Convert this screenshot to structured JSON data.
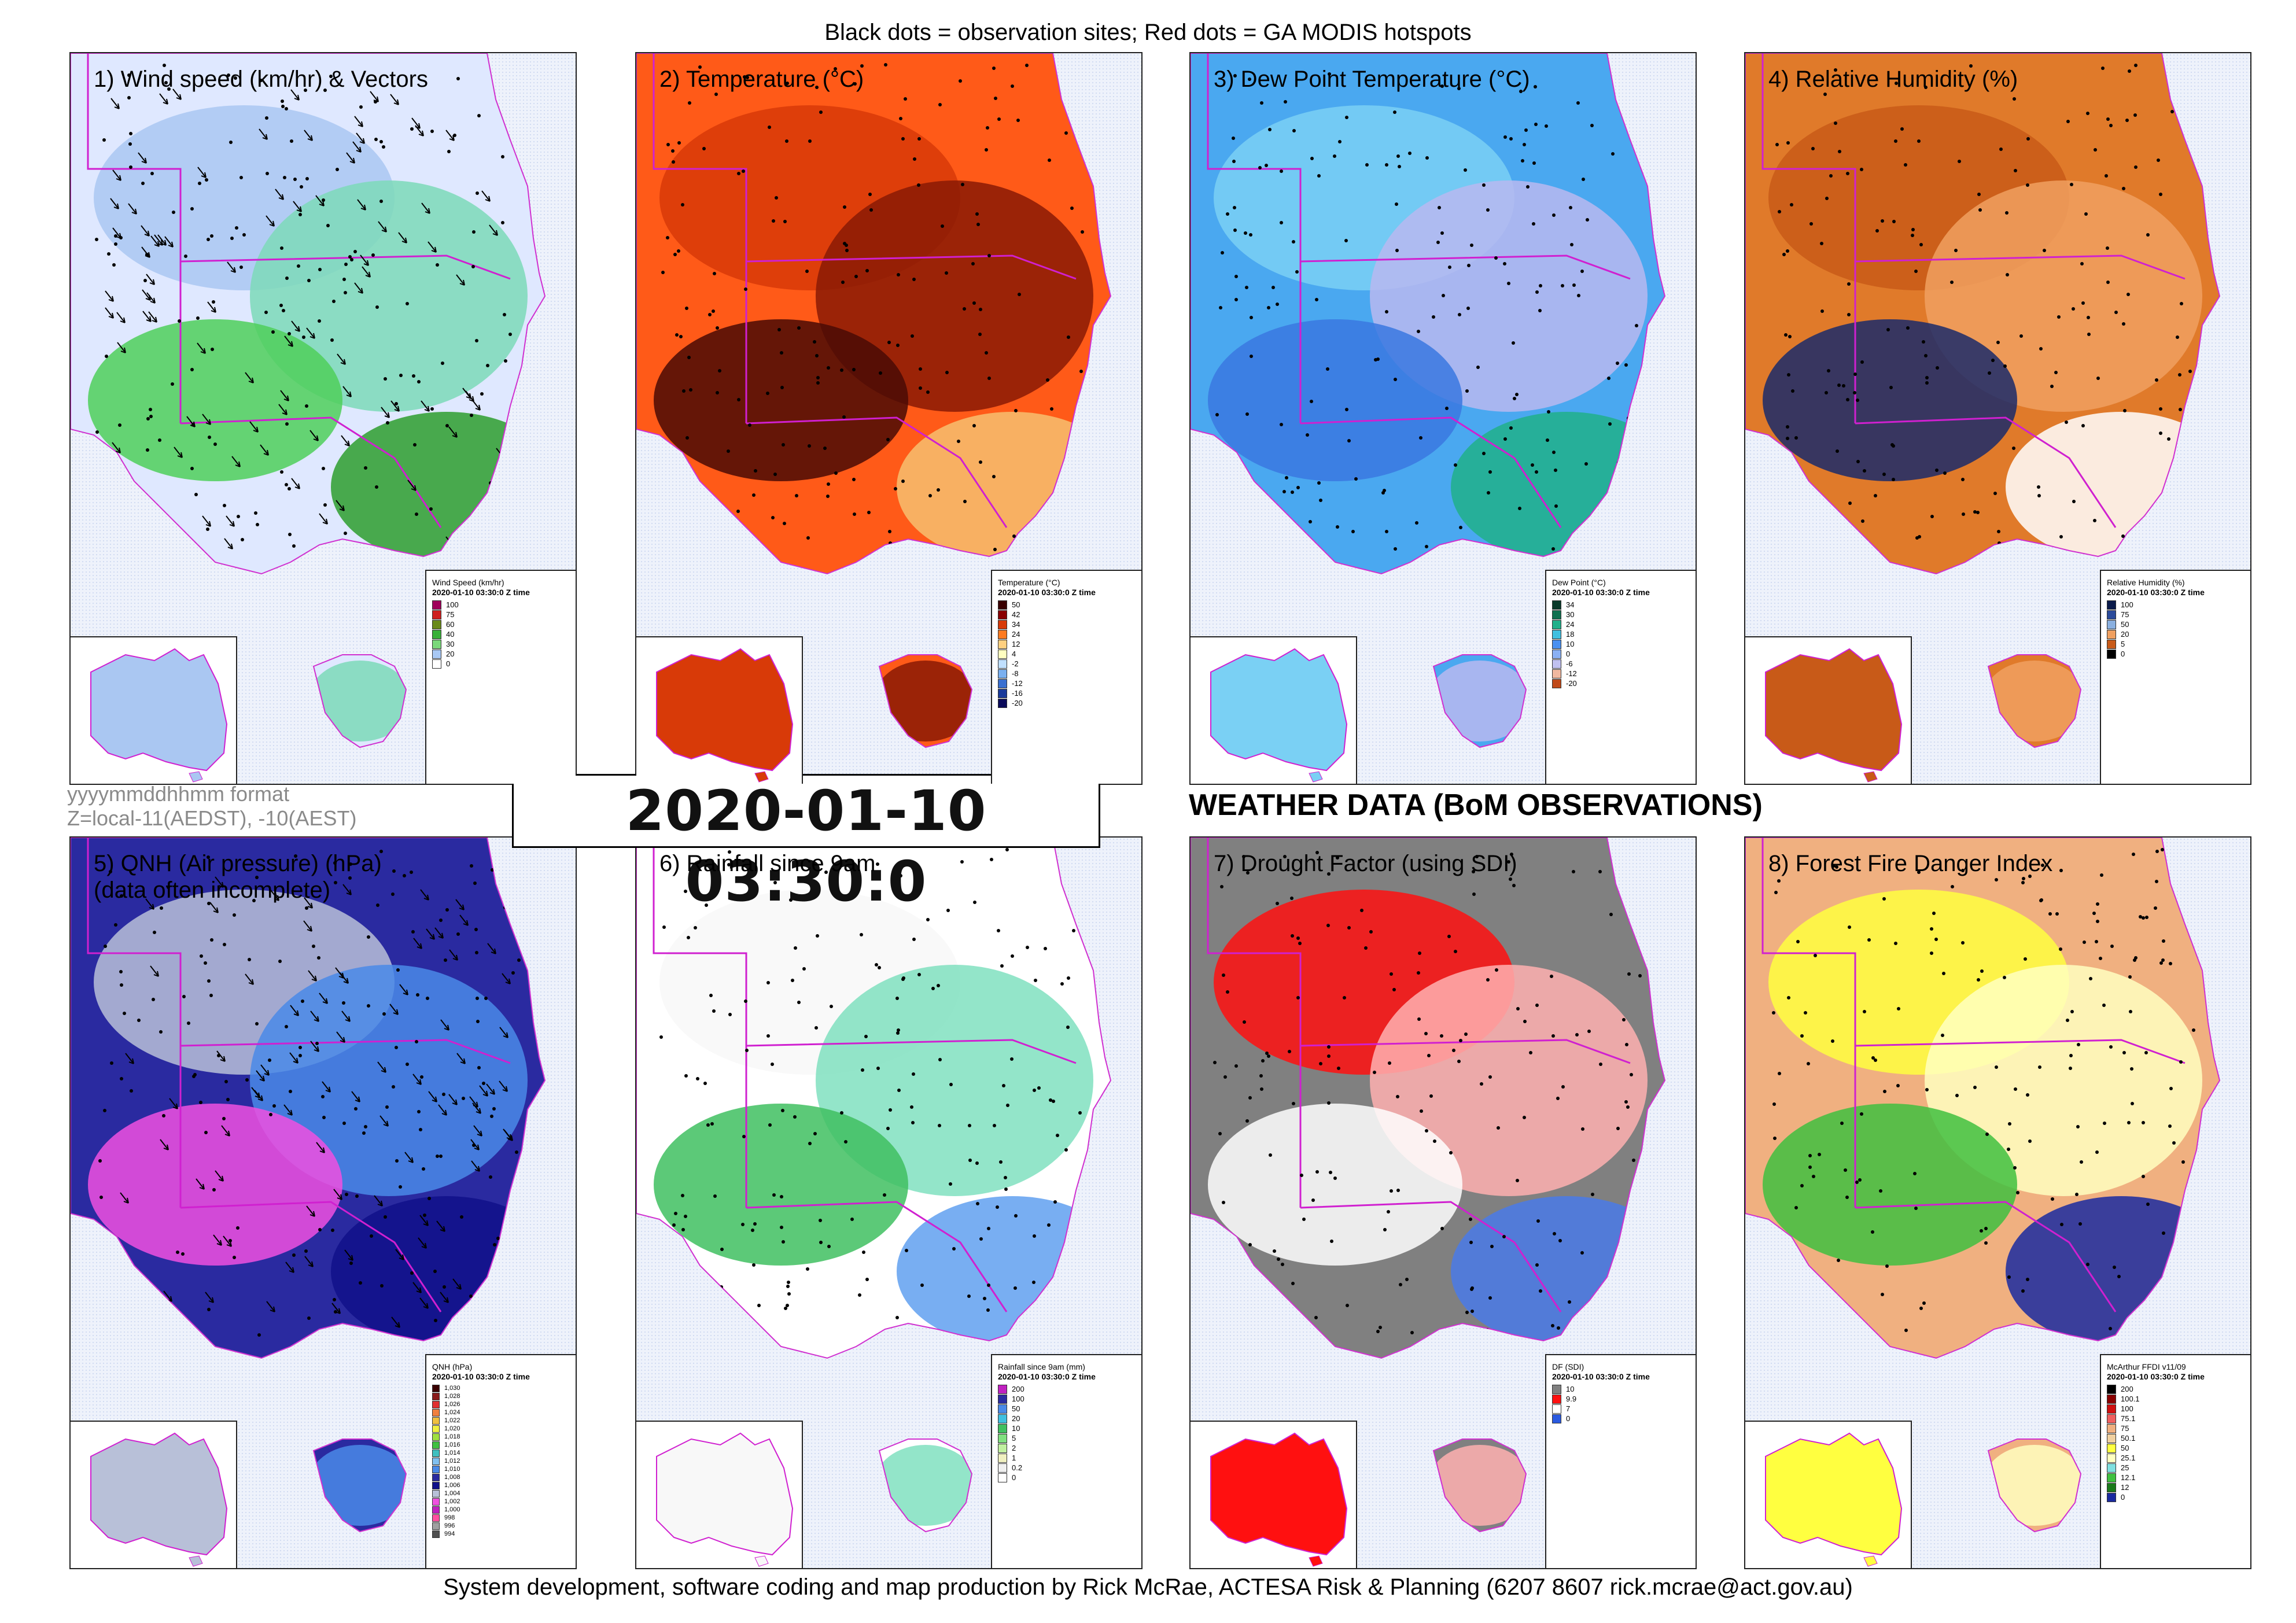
{
  "header": {
    "note": "Black dots = observation sites; Red dots = GA MODIS hotspots"
  },
  "meta": {
    "format": "yyyymmddhhmm format",
    "zone": "Z=local-11(AEDST), -10(AEST)"
  },
  "timestamp": "2020-01-10 03:30:0",
  "heading": "WEATHER DATA (BoM OBSERVATIONS)",
  "footer": "System development, software coding and map production by Rick McRae, ACTESA Risk & Planning (6207 8607 rick.mcrae@act.gov.au)",
  "panels": [
    {
      "title": "1) Wind speed (km/hr) & Vectors",
      "colors": [
        "#dfe8ff",
        "#aac7f2",
        "#7dd9b8",
        "#4fcf5a",
        "#2e9e2e"
      ],
      "legend": {
        "title": "Wind Speed (km/hr)",
        "time": "2020-01-10 03:30:0 Z time",
        "rows": [
          {
            "label": "100",
            "color": "#a0005a"
          },
          {
            "label": "75",
            "color": "#cf2020"
          },
          {
            "label": "60",
            "color": "#6a8a1a"
          },
          {
            "label": "40",
            "color": "#39b039"
          },
          {
            "label": "30",
            "color": "#7ad87a"
          },
          {
            "label": "20",
            "color": "#a8c8f4"
          },
          {
            "label": "0",
            "color": "#ffffff"
          }
        ]
      }
    },
    {
      "title": "2) Temperature (°C)",
      "colors": [
        "#ff5a18",
        "#d83a08",
        "#8a1a05",
        "#4a0a05",
        "#f7c070"
      ],
      "legend": {
        "title": "Temperature (°C)",
        "time": "2020-01-10 03:30:0 Z time",
        "rows": [
          {
            "label": "50",
            "color": "#3a0000"
          },
          {
            "label": "42",
            "color": "#8a0000"
          },
          {
            "label": "34",
            "color": "#d83a08"
          },
          {
            "label": "24",
            "color": "#ff7a20"
          },
          {
            "label": "12",
            "color": "#ffd080"
          },
          {
            "label": "4",
            "color": "#ffffc0"
          },
          {
            "label": "-2",
            "color": "#c0e0ff"
          },
          {
            "label": "-8",
            "color": "#7ab0f0"
          },
          {
            "label": "-12",
            "color": "#3a70d0"
          },
          {
            "label": "-16",
            "color": "#1a3a9a"
          },
          {
            "label": "-20",
            "color": "#0a0a5a"
          }
        ]
      }
    },
    {
      "title": "3) Dew Point Temperature (°C)",
      "colors": [
        "#4aa8f0",
        "#7ad0f4",
        "#b8b8f0",
        "#3a78e0",
        "#20b08a"
      ],
      "legend": {
        "title": "Dew Point (°C)",
        "time": "2020-01-10 03:30:0 Z time",
        "rows": [
          {
            "label": "34",
            "color": "#0a3a2a"
          },
          {
            "label": "30",
            "color": "#107050"
          },
          {
            "label": "24",
            "color": "#20b08a"
          },
          {
            "label": "18",
            "color": "#40c0e0"
          },
          {
            "label": "10",
            "color": "#4a90f0"
          },
          {
            "label": "0",
            "color": "#8ab0f4"
          },
          {
            "label": "-6",
            "color": "#c0c0f0"
          },
          {
            "label": "-12",
            "color": "#f0b8a0"
          },
          {
            "label": "-20",
            "color": "#c04a1a"
          }
        ]
      }
    },
    {
      "title": "4) Relative Humidity (%)",
      "colors": [
        "#e07a2a",
        "#c85a18",
        "#f0a060",
        "#1a2a6a",
        "#ffffff"
      ],
      "legend": {
        "title": "Relative Humidity (%)",
        "time": "2020-01-10 03:30:0 Z time",
        "rows": [
          {
            "label": "100",
            "color": "#0a1a4a"
          },
          {
            "label": "75",
            "color": "#2a4a9a"
          },
          {
            "label": "50",
            "color": "#8ab0e0"
          },
          {
            "label": "20",
            "color": "#f0a060"
          },
          {
            "label": "5",
            "color": "#c85a18"
          },
          {
            "label": "0",
            "color": "#000000"
          }
        ]
      }
    },
    {
      "title": "5) QNH (Air pressure) (hPa)\n(data often incomplete)",
      "colors": [
        "#2a2aa0",
        "#b8c0d8",
        "#4a8ae8",
        "#f050e0",
        "#10108a"
      ],
      "legend": {
        "title": "QNH (hPa)",
        "time": "2020-01-10 03:30:0 Z time",
        "rows": [
          {
            "label": "1,030",
            "color": "#3a0000"
          },
          {
            "label": "1,028",
            "color": "#8a1a1a"
          },
          {
            "label": "1,026",
            "color": "#e03030"
          },
          {
            "label": "1,024",
            "color": "#f08040"
          },
          {
            "label": "1,022",
            "color": "#f0c040"
          },
          {
            "label": "1,020",
            "color": "#f0f040"
          },
          {
            "label": "1,018",
            "color": "#a0e040"
          },
          {
            "label": "1,016",
            "color": "#40c040"
          },
          {
            "label": "1,014",
            "color": "#40c0c0"
          },
          {
            "label": "1,012",
            "color": "#80c0f0"
          },
          {
            "label": "1,010",
            "color": "#4a8ae8"
          },
          {
            "label": "1,008",
            "color": "#2a2aa0"
          },
          {
            "label": "1,006",
            "color": "#10108a"
          },
          {
            "label": "1,004",
            "color": "#b8c0d8"
          },
          {
            "label": "1,002",
            "color": "#f050e0"
          },
          {
            "label": "1,000",
            "color": "#c020c0"
          },
          {
            "label": "998",
            "color": "#ff50a0"
          },
          {
            "label": "996",
            "color": "#a0a0a0"
          },
          {
            "label": "994",
            "color": "#505050"
          }
        ]
      }
    },
    {
      "title": "6) Rainfall since 9am",
      "colors": [
        "#ffffff",
        "#f8f8f8",
        "#80e0c0",
        "#40c060",
        "#60a0f0"
      ],
      "legend": {
        "title": "Rainfall since 9am (mm)",
        "time": "2020-01-10 03:30:0 Z time",
        "rows": [
          {
            "label": "200",
            "color": "#c020c0"
          },
          {
            "label": "100",
            "color": "#2a2aa0"
          },
          {
            "label": "50",
            "color": "#4a8ae8"
          },
          {
            "label": "20",
            "color": "#40c0e0"
          },
          {
            "label": "10",
            "color": "#40c060"
          },
          {
            "label": "5",
            "color": "#80e080"
          },
          {
            "label": "2",
            "color": "#c0f0a0"
          },
          {
            "label": "1",
            "color": "#f0f0c0"
          },
          {
            "label": "0.2",
            "color": "#f0f0f0"
          },
          {
            "label": "0",
            "color": "#ffffff"
          }
        ]
      }
    },
    {
      "title": "7) Drought Factor (using SDI)",
      "colors": [
        "#808080",
        "#ff1010",
        "#ffb0b0",
        "#ffffff",
        "#4a7ae8"
      ],
      "legend": {
        "title": "DF (SDI)",
        "time": "2020-01-10 03:30:0 Z time",
        "rows": [
          {
            "label": "10",
            "color": "#808080"
          },
          {
            "label": "9.9",
            "color": "#ff1010"
          },
          {
            "label": "7",
            "color": "#ffffff"
          },
          {
            "label": "0",
            "color": "#2a5ae0"
          }
        ]
      }
    },
    {
      "title": "8) Forest Fire Danger Index",
      "colors": [
        "#f0b080",
        "#ffff40",
        "#ffffc0",
        "#40c040",
        "#1a2aa0"
      ],
      "legend": {
        "title": "McArthur FFDI v11/09",
        "time": "2020-01-10 03:30:0 Z time",
        "rows": [
          {
            "label": "200",
            "color": "#000000"
          },
          {
            "label": "100.1",
            "color": "#8a0000"
          },
          {
            "label": "100",
            "color": "#d01010"
          },
          {
            "label": "75.1",
            "color": "#f06060"
          },
          {
            "label": "75",
            "color": "#f0b080"
          },
          {
            "label": "50.1",
            "color": "#f0d0a0"
          },
          {
            "label": "50",
            "color": "#ffff40"
          },
          {
            "label": "25.1",
            "color": "#ffffc0"
          },
          {
            "label": "25",
            "color": "#80e0e0"
          },
          {
            "label": "12.1",
            "color": "#40c040"
          },
          {
            "label": "12",
            "color": "#1a7a1a"
          },
          {
            "label": "0",
            "color": "#1a2aa0"
          }
        ]
      }
    }
  ]
}
